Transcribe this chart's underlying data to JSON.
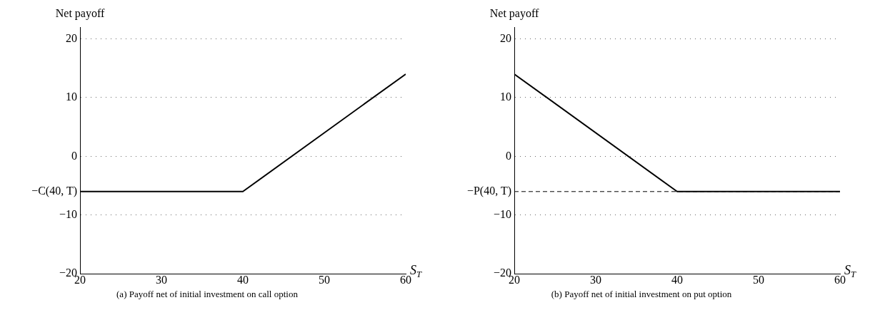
{
  "chart_data": [
    {
      "type": "line",
      "title": "(a) Payoff net of initial investment on call option",
      "xlabel": "S$_{T}$",
      "ylabel": "Net payoff",
      "x": [
        20,
        40,
        60
      ],
      "series": [
        {
          "color": "#000000",
          "values": [
            -6,
            -6,
            14
          ]
        }
      ],
      "xlim": [
        20,
        60
      ],
      "xticks": [
        20,
        30,
        40,
        50,
        60
      ],
      "ylim": [
        -20,
        22
      ],
      "yticks": [
        -20,
        {
          "value": -6,
          "label": "−C(40, T)"
        },
        -10,
        0,
        10,
        20
      ],
      "grid": "y",
      "marker": "none",
      "line_style": "solid",
      "legend": false
    },
    {
      "type": "line",
      "title": "(b) Payoff net of initial investment on put option",
      "xlabel": "S$_{T}$",
      "ylabel": "Net payoff",
      "x": [
        20,
        40,
        60
      ],
      "series": [
        {
          "color": "#000000",
          "values": [
            14,
            -6,
            -6
          ]
        }
      ],
      "xlim": [
        20,
        60
      ],
      "xticks": [
        20,
        30,
        40,
        50,
        60
      ],
      "ylim": [
        -20,
        22
      ],
      "yticks": [
        -20,
        -10,
        0,
        10,
        20
      ],
      "grid": "y",
      "marker": "none",
      "line_style": "solid",
      "legend": false,
      "ref_lines": [
        {
          "axis": "y",
          "value": -6,
          "label": "−P(40, T)",
          "line_style": "dashed"
        }
      ]
    }
  ]
}
